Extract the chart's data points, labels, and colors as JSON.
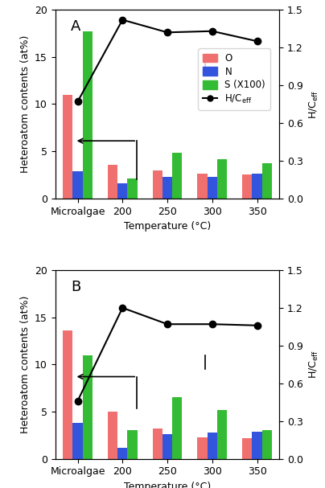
{
  "panel_A": {
    "label": "A",
    "categories": [
      "Microalgae",
      "200",
      "250",
      "300",
      "350"
    ],
    "O": [
      11.0,
      3.6,
      3.0,
      2.6,
      2.5
    ],
    "N": [
      2.9,
      1.6,
      2.3,
      2.3,
      2.6
    ],
    "S_x100": [
      17.7,
      2.1,
      4.8,
      4.2,
      3.7
    ],
    "HC": [
      0.77,
      1.42,
      1.32,
      1.33,
      1.25
    ]
  },
  "panel_B": {
    "label": "B",
    "categories": [
      "Microalgae",
      "200",
      "250",
      "300",
      "350"
    ],
    "O": [
      13.6,
      5.0,
      3.2,
      2.3,
      2.2
    ],
    "N": [
      3.8,
      1.2,
      2.6,
      2.8,
      2.9
    ],
    "S_x100": [
      11.0,
      3.0,
      6.5,
      5.2,
      3.0
    ],
    "HC": [
      0.46,
      1.2,
      1.07,
      1.07,
      1.06
    ]
  },
  "colors": {
    "O": "#f07070",
    "N": "#3355dd",
    "S": "#33bb33",
    "line": "#000000"
  },
  "ylim_left": [
    0,
    20
  ],
  "ylim_right": [
    0,
    1.5
  ],
  "yticks_left": [
    0,
    5,
    10,
    15,
    20
  ],
  "yticks_right": [
    0.0,
    0.3,
    0.6,
    0.9,
    1.2,
    1.5
  ],
  "xlabel": "Temperature (°C)",
  "ylabel_left": "Heteroatom contents (at%)",
  "ylabel_right": "H/C$_{\\rm eff}$"
}
